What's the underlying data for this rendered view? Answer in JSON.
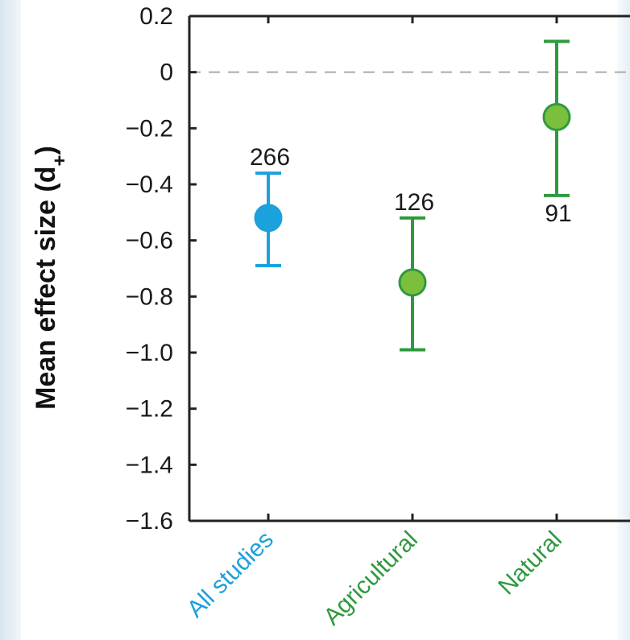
{
  "chart_data": {
    "type": "scatter",
    "title": "",
    "xlabel": "",
    "ylabel": "Mean effect size (d",
    "ylabel_subscript": "+",
    "ylabel_close": ")",
    "ylim": [
      -1.6,
      0.2
    ],
    "yticks": [
      0.2,
      0,
      -0.2,
      -0.4,
      -0.6,
      -0.8,
      -1.0,
      -1.2,
      -1.4,
      -1.6
    ],
    "ytick_labels": [
      "0.2",
      "0",
      "−0.2",
      "−0.4",
      "−0.6",
      "−0.8",
      "−1.0",
      "−1.2",
      "−1.4",
      "−1.6"
    ],
    "reference_line": 0,
    "grid": false,
    "categories": [
      "All studies",
      "Agricultural",
      "Natural"
    ],
    "points": [
      {
        "category": "All studies",
        "mean": -0.52,
        "ci_low": -0.69,
        "ci_high": -0.36,
        "n": "266",
        "n_position": "above",
        "color": "#1ba1dc"
      },
      {
        "category": "Agricultural",
        "mean": -0.75,
        "ci_low": -0.99,
        "ci_high": -0.52,
        "n": "126",
        "n_position": "above",
        "color": "#2e9a3e"
      },
      {
        "category": "Natural",
        "mean": -0.16,
        "ci_low": -0.44,
        "ci_high": 0.11,
        "n": "91",
        "n_position": "below",
        "color": "#2e9a3e"
      }
    ],
    "colors": {
      "all_studies": "#1ba1dc",
      "group": "#2e9a3e",
      "group_fill": "#7cbf3d",
      "axis": "#222222",
      "reference": "#aaaaaa"
    }
  }
}
